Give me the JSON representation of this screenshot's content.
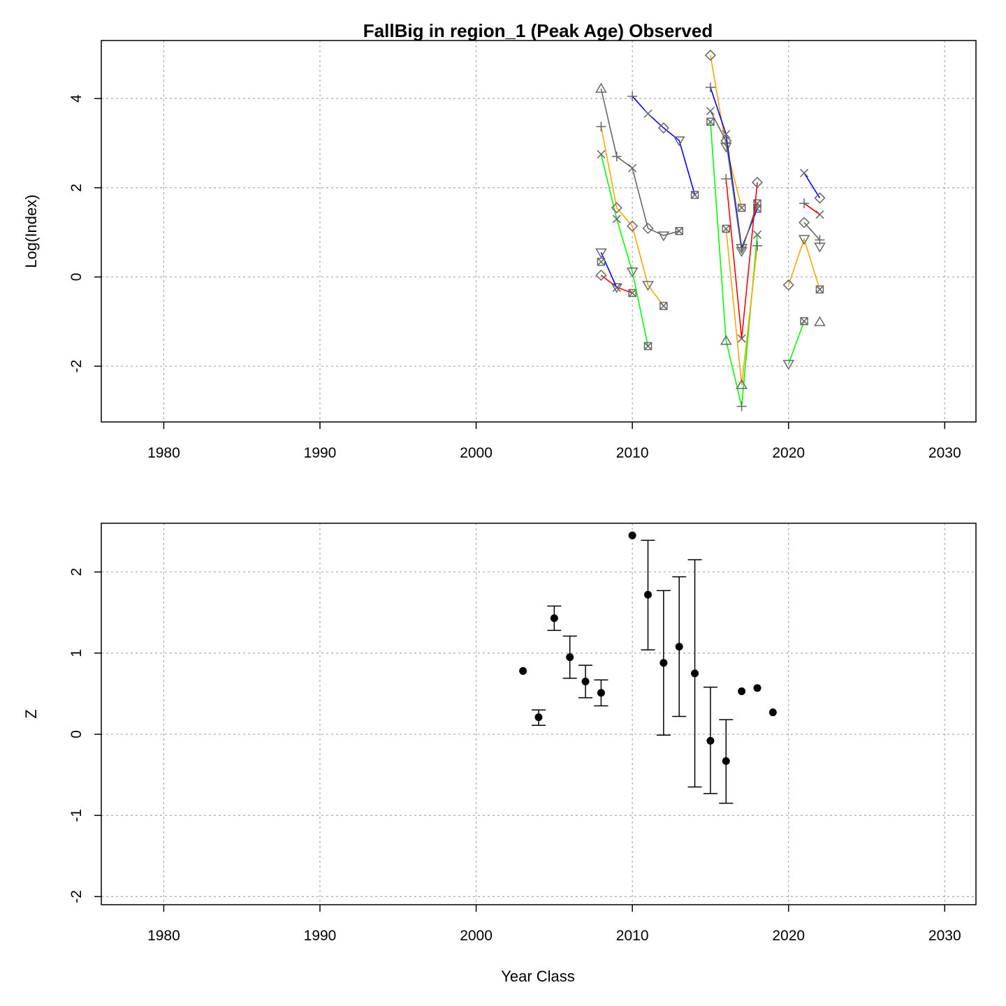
{
  "top_chart": {
    "title": "FallBig in region_1 (Peak Age) Observed",
    "ylabel": "Log(Index)",
    "xlabel": ""
  },
  "bottom_chart": {
    "title": "",
    "ylabel": "Z",
    "xlabel": "Year Class"
  },
  "chart_data": [
    {
      "type": "line",
      "title": "FallBig in region_1 (Peak Age) Observed",
      "xlabel": "",
      "ylabel": "Log(Index)",
      "xlim": [
        1976,
        2032
      ],
      "ylim": [
        -3.25,
        5.3
      ],
      "xticks": [
        1980,
        1990,
        2000,
        2010,
        2020,
        2030
      ],
      "xtick_labels": [
        "1980",
        "1990",
        "2000",
        "2010",
        "2020",
        "2030"
      ],
      "yticks": [
        -2,
        0,
        2,
        4
      ],
      "ytick_labels": [
        "-2",
        "0",
        "2",
        "4"
      ],
      "grid": true,
      "series": [
        {
          "color": "#ff0000",
          "points": [
            [
              2008,
              0.04,
              "diamond"
            ],
            [
              2009,
              -0.23,
              "tri_down"
            ],
            [
              2010,
              -0.36,
              "box_x"
            ]
          ]
        },
        {
          "color": "#0000ff",
          "points": [
            [
              2008,
              0.55,
              "tri_down"
            ],
            [
              2009,
              -0.24,
              "x"
            ]
          ]
        },
        {
          "color": "#00ff00",
          "points": [
            [
              2008,
              2.75,
              "x"
            ],
            [
              2009,
              1.3,
              "x"
            ],
            [
              2010,
              0.12,
              "tri_down"
            ],
            [
              2011,
              -1.55,
              "box_x"
            ]
          ]
        },
        {
          "color": "#ffa500",
          "points": [
            [
              2008,
              3.37,
              "plus"
            ],
            [
              2009,
              1.55,
              "diamond"
            ],
            [
              2010,
              1.14,
              "diamond"
            ],
            [
              2011,
              -0.18,
              "tri_down"
            ],
            [
              2012,
              -0.65,
              "box_x"
            ]
          ]
        },
        {
          "color": "#666666",
          "points": [
            [
              2008,
              4.22,
              "tri_up"
            ],
            [
              2009,
              2.7,
              "plus"
            ],
            [
              2010,
              2.44,
              "x"
            ],
            [
              2011,
              1.09,
              "diamond"
            ],
            [
              2012,
              0.93,
              "tri_down"
            ],
            [
              2013,
              1.03,
              "box_x"
            ]
          ]
        },
        {
          "color": "#0000ff",
          "points": [
            [
              2010,
              4.05,
              "plus"
            ],
            [
              2011,
              3.66,
              "x"
            ],
            [
              2012,
              3.34,
              "diamond"
            ],
            [
              2013,
              3.06,
              "tri_down"
            ],
            [
              2014,
              1.84,
              "box_x"
            ]
          ]
        },
        {
          "color": "#ffa500",
          "points": [
            [
              2015,
              4.97,
              "diamond"
            ],
            [
              2016,
              2.92,
              "tri_down"
            ],
            [
              2017,
              1.55,
              "box_x"
            ]
          ]
        },
        {
          "color": "#0000ff",
          "points": [
            [
              2015,
              4.25,
              "plus"
            ],
            [
              2016,
              3.2,
              "x"
            ],
            [
              2017,
              0.65,
              "tri_down"
            ],
            [
              2018,
              1.53,
              "box_x"
            ]
          ]
        },
        {
          "color": "#666666",
          "points": [
            [
              2015,
              3.72,
              "x"
            ],
            [
              2016,
              3.05,
              "diamond"
            ],
            [
              2017,
              0.58,
              "tri_down"
            ],
            [
              2018,
              1.65,
              "box_x"
            ]
          ]
        },
        {
          "color": "#00ff00",
          "points": [
            [
              2015,
              3.48,
              "box_x"
            ],
            [
              2016,
              -1.43,
              "tri_up"
            ],
            [
              2017,
              -2.9,
              "plus"
            ],
            [
              2018,
              0.95,
              "x"
            ]
          ]
        },
        {
          "color": "#ff0000",
          "points": [
            [
              2016,
              2.2,
              "plus"
            ],
            [
              2017,
              -1.38,
              "x"
            ],
            [
              2018,
              2.12,
              "diamond"
            ]
          ]
        },
        {
          "color": "#ffa500",
          "points": [
            [
              2016,
              1.08,
              "box_x"
            ],
            [
              2017,
              -2.42,
              "tri_up"
            ],
            [
              2018,
              0.7,
              "plus"
            ]
          ]
        },
        {
          "color": "#ffa500",
          "points": [
            [
              2020,
              -0.18,
              "diamond"
            ],
            [
              2021,
              0.85,
              "tri_down"
            ],
            [
              2022,
              -0.28,
              "box_x"
            ]
          ]
        },
        {
          "color": "#00ff00",
          "points": [
            [
              2020,
              -1.95,
              "tri_down"
            ],
            [
              2021,
              -0.99,
              "box_x"
            ]
          ]
        },
        {
          "color": "#ff0000",
          "points": [
            [
              2021,
              1.65,
              "plus"
            ],
            [
              2022,
              1.4,
              "x"
            ]
          ]
        },
        {
          "color": "#0000ff",
          "points": [
            [
              2021,
              2.33,
              "x"
            ],
            [
              2022,
              1.77,
              "diamond"
            ]
          ]
        },
        {
          "color": "#666666",
          "points": [
            [
              2021,
              1.22,
              "diamond"
            ],
            [
              2022,
              0.83,
              "plus"
            ]
          ]
        },
        {
          "color": "#666666",
          "points": [
            [
              2022,
              0.68,
              "tri_down"
            ]
          ]
        },
        {
          "color": "#666666",
          "points": [
            [
              2022,
              -1.01,
              "tri_up"
            ]
          ]
        },
        {
          "color": "#666666",
          "points": [
            [
              2008,
              0.34,
              "box_x"
            ]
          ]
        }
      ]
    },
    {
      "type": "scatter",
      "title": "",
      "xlabel": "Year Class",
      "ylabel": "Z",
      "xlim": [
        1976,
        2032
      ],
      "ylim": [
        -2.1,
        2.6
      ],
      "xticks": [
        1980,
        1990,
        2000,
        2010,
        2020,
        2030
      ],
      "xtick_labels": [
        "1980",
        "1990",
        "2000",
        "2010",
        "2020",
        "2030"
      ],
      "yticks": [
        -2,
        -1,
        0,
        1,
        2
      ],
      "ytick_labels": [
        "-2",
        "-1",
        "0",
        "1",
        "2"
      ],
      "grid": true,
      "points": [
        {
          "x": 2003,
          "y": 0.78
        },
        {
          "x": 2004,
          "y": 0.21,
          "lo": 0.11,
          "hi": 0.3
        },
        {
          "x": 2005,
          "y": 1.43,
          "lo": 1.28,
          "hi": 1.58
        },
        {
          "x": 2006,
          "y": 0.95,
          "lo": 0.69,
          "hi": 1.21
        },
        {
          "x": 2007,
          "y": 0.65,
          "lo": 0.45,
          "hi": 0.85
        },
        {
          "x": 2008,
          "y": 0.51,
          "lo": 0.35,
          "hi": 0.67
        },
        {
          "x": 2010,
          "y": 2.45
        },
        {
          "x": 2011,
          "y": 1.72,
          "lo": 1.04,
          "hi": 2.39
        },
        {
          "x": 2012,
          "y": 0.88,
          "lo": -0.01,
          "hi": 1.77
        },
        {
          "x": 2013,
          "y": 1.08,
          "lo": 0.22,
          "hi": 1.94
        },
        {
          "x": 2014,
          "y": 0.75,
          "lo": -0.65,
          "hi": 2.15
        },
        {
          "x": 2015,
          "y": -0.08,
          "lo": -0.73,
          "hi": 0.58
        },
        {
          "x": 2016,
          "y": -0.33,
          "lo": -0.85,
          "hi": 0.18
        },
        {
          "x": 2017,
          "y": 0.53
        },
        {
          "x": 2018,
          "y": 0.57
        },
        {
          "x": 2019,
          "y": 0.27
        }
      ]
    }
  ]
}
